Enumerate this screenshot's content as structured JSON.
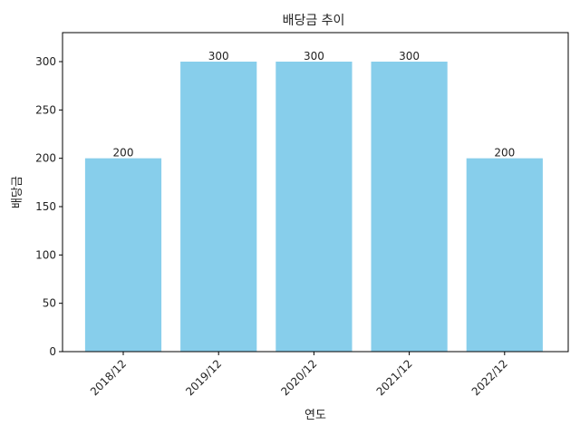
{
  "chart_data": {
    "type": "bar",
    "title": "배당금 추이",
    "xlabel": "연도",
    "ylabel": "배당금",
    "categories": [
      "2018/12",
      "2019/12",
      "2020/12",
      "2021/12",
      "2022/12"
    ],
    "values": [
      200,
      300,
      300,
      300,
      200
    ],
    "data_labels": [
      "200",
      "300",
      "300",
      "300",
      "200"
    ],
    "ylim": [
      0,
      330
    ],
    "yticks": [
      0,
      50,
      100,
      150,
      200,
      250,
      300
    ],
    "ytick_labels": [
      "0",
      "50",
      "100",
      "150",
      "200",
      "250",
      "300"
    ],
    "bar_color": "#87ceeb",
    "grid": false,
    "legend": "none"
  }
}
